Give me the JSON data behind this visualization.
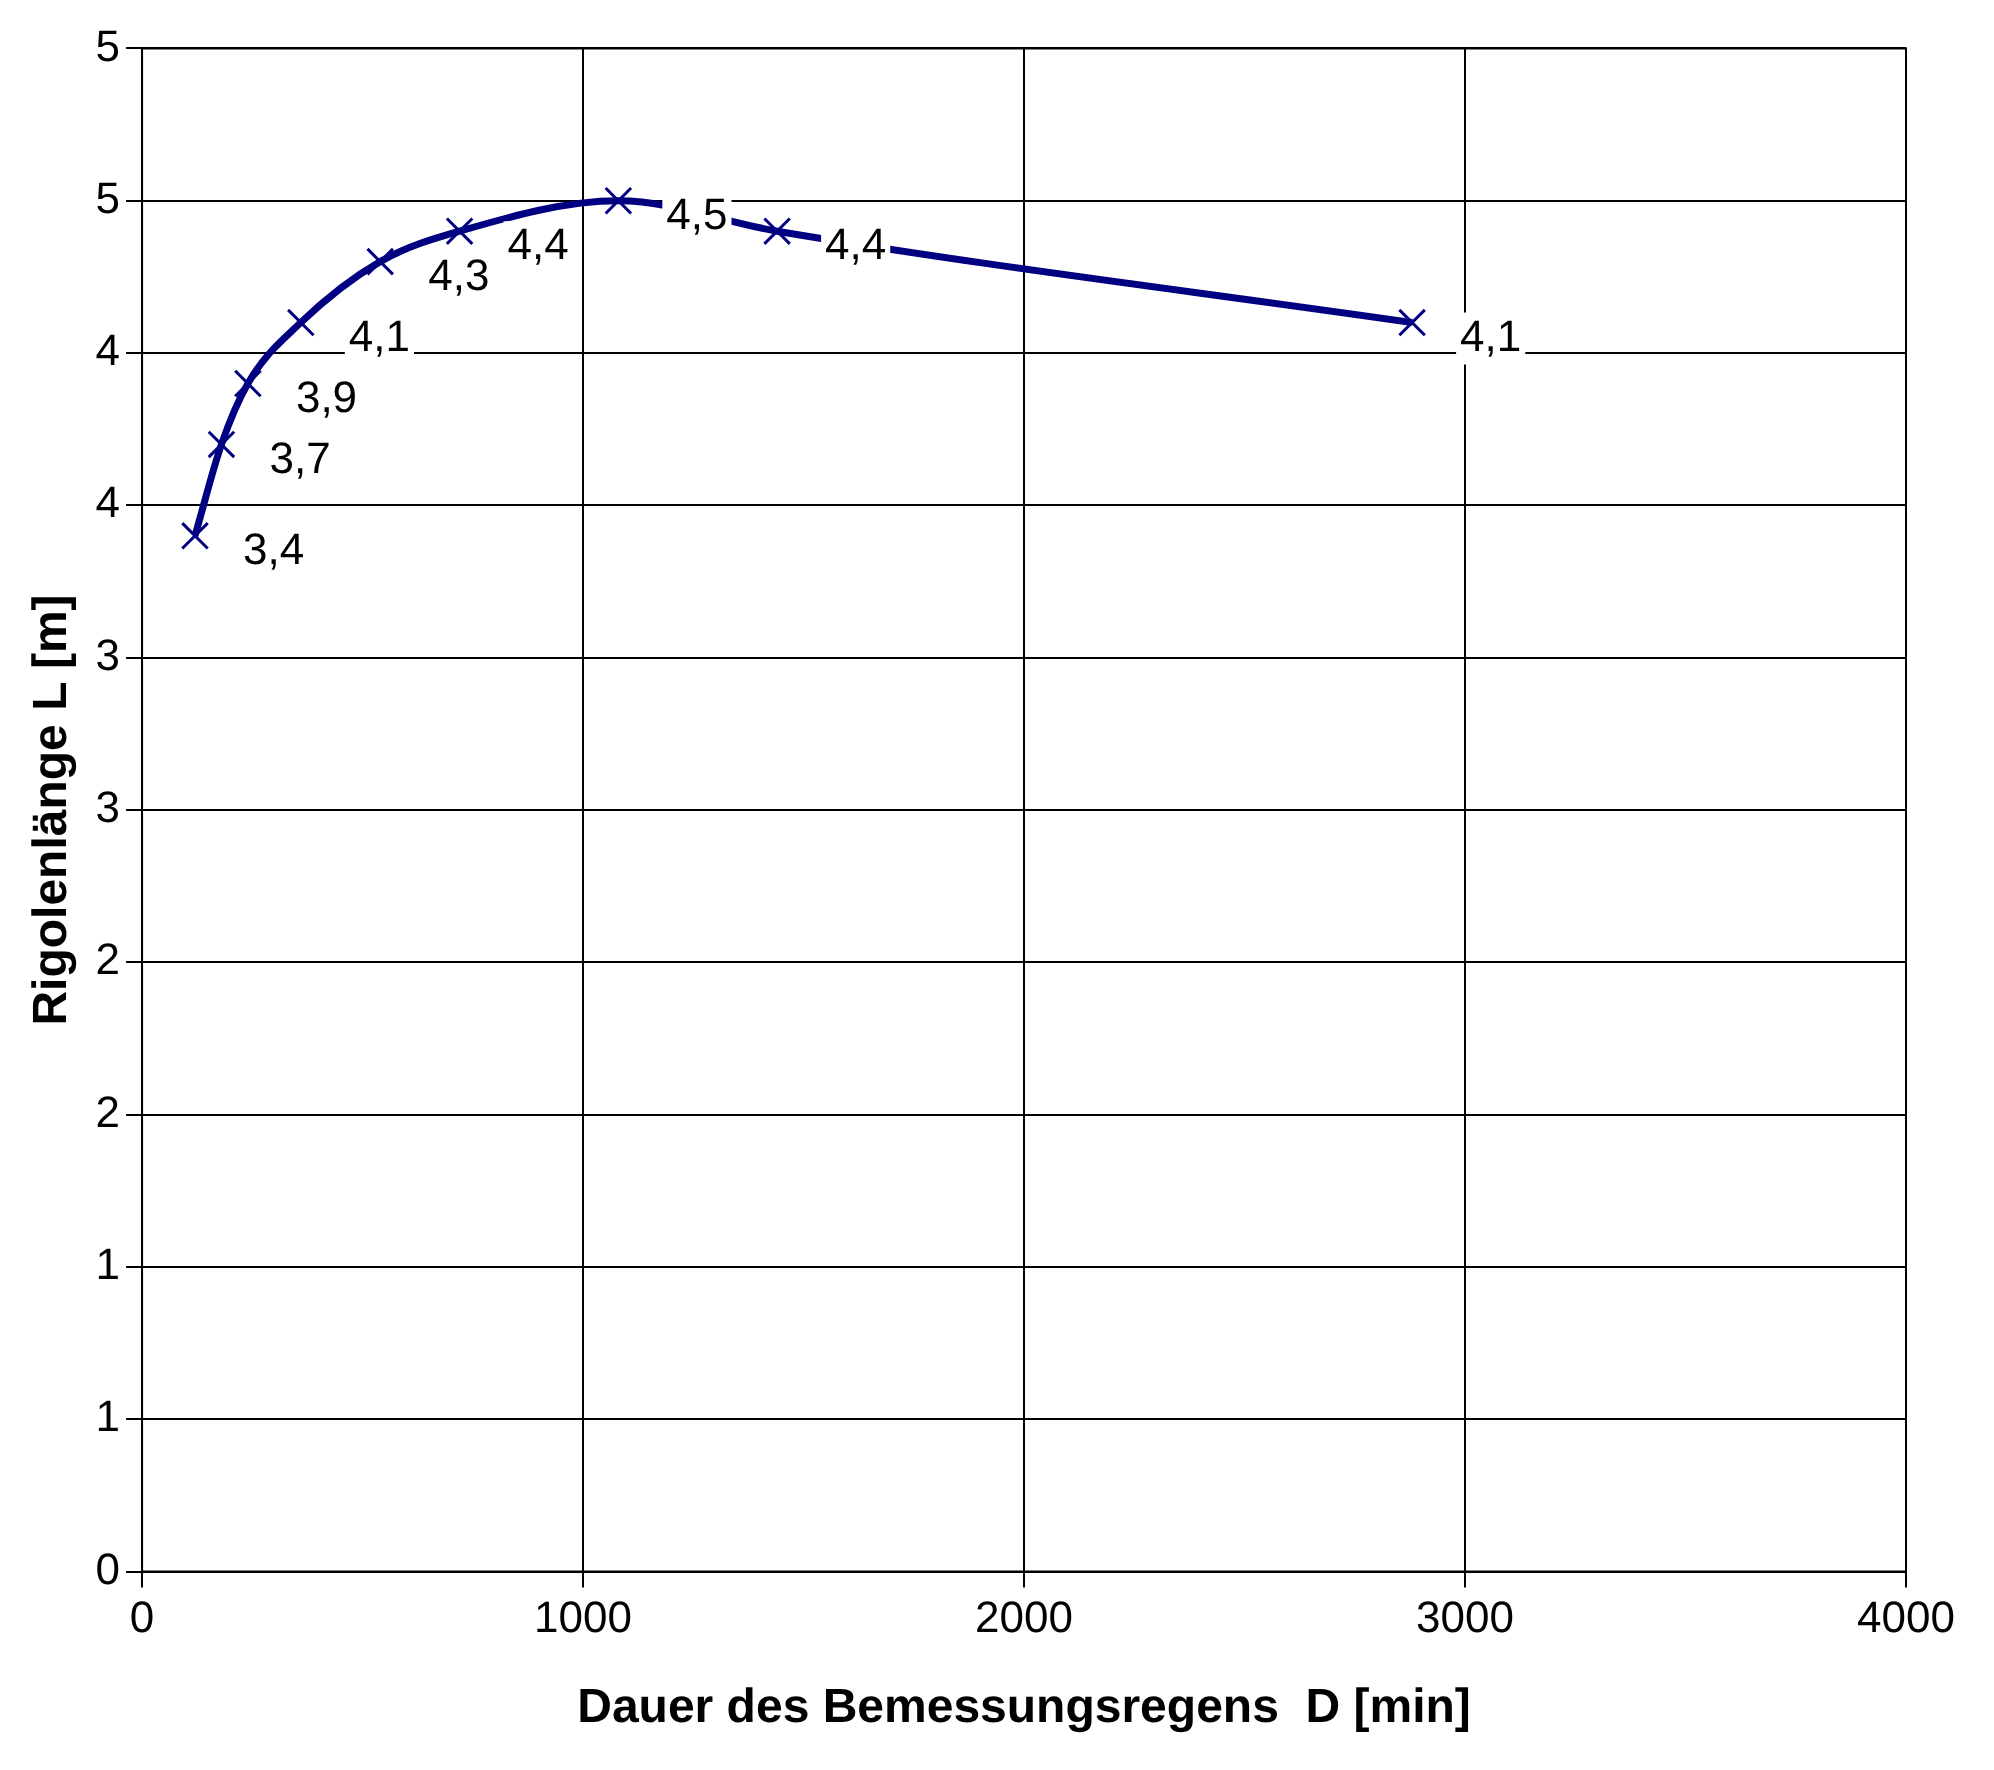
{
  "chart_data": {
    "type": "line",
    "xlabel": "Dauer des Bemessungsregens  D [min]",
    "ylabel": "Rigolenlänge L [m]",
    "x": [
      120,
      180,
      240,
      360,
      540,
      720,
      1080,
      1440,
      2880
    ],
    "series": [
      {
        "color": "#000080",
        "values": [
          3.4,
          3.7,
          3.9,
          4.1,
          4.3,
          4.4,
          4.5,
          4.4,
          4.1
        ],
        "value_labels": [
          "3,4",
          "3,7",
          "3,9",
          "4,1",
          "4,3",
          "4,4",
          "4,5",
          "4,4",
          "4,1"
        ]
      }
    ],
    "xlim": [
      0,
      4000
    ],
    "xticks": [
      0,
      1000,
      2000,
      3000,
      4000
    ],
    "ylim": [
      0,
      5
    ],
    "yticks": [
      0,
      {
        "value": 0.5,
        "label": "1"
      },
      1,
      {
        "value": 1.5,
        "label": "2"
      },
      2,
      {
        "value": 2.5,
        "label": "3"
      },
      3,
      {
        "value": 3.5,
        "label": "4"
      },
      4,
      {
        "value": 4.5,
        "label": "5"
      },
      5
    ],
    "grid": true,
    "legend": false,
    "marker": "cross",
    "line_style": "solid"
  }
}
